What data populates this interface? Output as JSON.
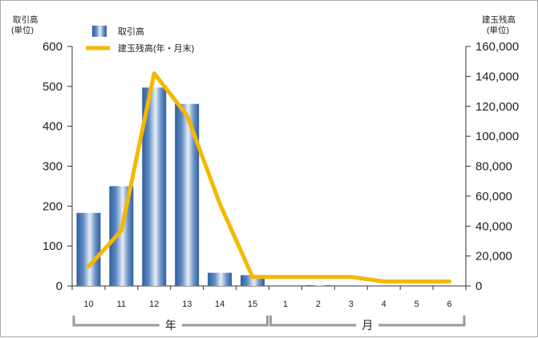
{
  "chart_data": {
    "type": "bar+line",
    "categories": [
      "10",
      "11",
      "12",
      "13",
      "14",
      "15",
      "1",
      "2",
      "3",
      "4",
      "5",
      "6"
    ],
    "category_groups": [
      {
        "label": "年",
        "from": 0,
        "to": 5
      },
      {
        "label": "月",
        "from": 6,
        "to": 11
      }
    ],
    "left_axis": {
      "title_line1": "取引高",
      "title_line2": "(単位)",
      "ylim": [
        0,
        600
      ],
      "ticks": [
        "0",
        "100",
        "200",
        "300",
        "400",
        "500",
        "600"
      ]
    },
    "right_axis": {
      "title_line1": "建玉残高",
      "title_line2": "(単位)",
      "ylim": [
        0,
        160000
      ],
      "ticks": [
        "0",
        "20,000",
        "40,000",
        "60,000",
        "80,000",
        "100,000",
        "120,000",
        "140,000",
        "160,000"
      ]
    },
    "series": [
      {
        "name": "取引高",
        "kind": "bar",
        "axis": "left",
        "color": "#3f6fae",
        "values": [
          183,
          250,
          497,
          456,
          33,
          27,
          0,
          2,
          0,
          0,
          0,
          0
        ]
      },
      {
        "name": "建玉残高(年・月末)",
        "kind": "line",
        "axis": "right",
        "color": "#f5b800",
        "values": [
          13000,
          37000,
          142000,
          114000,
          55000,
          6000,
          6000,
          6000,
          6000,
          3000,
          3000,
          3000
        ]
      }
    ],
    "legend_position": "top-left",
    "grid": false
  }
}
